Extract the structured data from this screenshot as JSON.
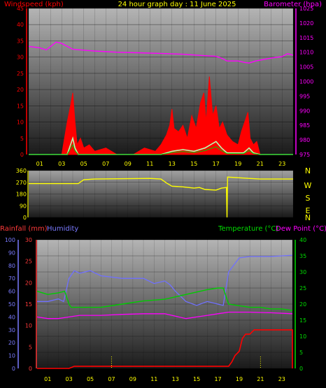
{
  "header": {
    "left": "Windspeed (kph)",
    "center": "24 hour graph day : 11 June 2025",
    "right": "Barometer (hpa)"
  },
  "colors": {
    "red": "#ff0000",
    "magenta": "#ff00ff",
    "yellow": "#ffff00",
    "green": "#00cc00",
    "blue": "#7070ff",
    "lightgreen": "#b8ffb0",
    "rain_axis": "#ff3a3a",
    "hum_axis": "#7a7aff",
    "temp_axis": "#00dd00"
  },
  "chart_data": [
    {
      "type": "line",
      "name": "wind-barometer",
      "x_ticks": [
        "01",
        "03",
        "05",
        "07",
        "09",
        "11",
        "13",
        "15",
        "17",
        "19",
        "21",
        "23"
      ],
      "y_left": {
        "label": "Windspeed (kph)",
        "ticks": [
          "0",
          "5",
          "10",
          "15",
          "20",
          "25",
          "30",
          "35",
          "40",
          "45"
        ],
        "range": [
          0,
          45
        ]
      },
      "y_right": {
        "label": "Barometer (hpa)",
        "ticks": [
          "975",
          "980",
          "985",
          "990",
          "995",
          "1000",
          "1005",
          "1010",
          "1015",
          "1020",
          "1025"
        ],
        "range": [
          975,
          1025
        ]
      },
      "barometer": [
        [
          0,
          1012
        ],
        [
          1,
          1011.5
        ],
        [
          1.6,
          1010.8
        ],
        [
          2,
          1012
        ],
        [
          2.5,
          1013.5
        ],
        [
          3,
          1013
        ],
        [
          3.5,
          1012
        ],
        [
          4,
          1011
        ],
        [
          6,
          1010.4
        ],
        [
          8,
          1010
        ],
        [
          10,
          1009.8
        ],
        [
          12,
          1009.6
        ],
        [
          14,
          1009.3
        ],
        [
          16,
          1008.8
        ],
        [
          17,
          1008.6
        ],
        [
          17.5,
          1008
        ],
        [
          18,
          1007
        ],
        [
          19,
          1007
        ],
        [
          19.6,
          1006.5
        ],
        [
          20,
          1006.3
        ],
        [
          20.6,
          1007
        ],
        [
          22,
          1008
        ],
        [
          23,
          1008.5
        ],
        [
          23.5,
          1009.5
        ],
        [
          24,
          1009
        ]
      ],
      "wind_gust": [
        [
          0,
          0
        ],
        [
          3,
          0
        ],
        [
          3.3,
          6
        ],
        [
          3.5,
          10
        ],
        [
          3.8,
          15
        ],
        [
          4.0,
          19
        ],
        [
          4.2,
          10
        ],
        [
          4.4,
          3
        ],
        [
          4.7,
          5
        ],
        [
          5,
          2
        ],
        [
          5.5,
          3
        ],
        [
          6,
          1
        ],
        [
          7,
          2
        ],
        [
          8,
          0
        ],
        [
          9.5,
          0
        ],
        [
          10.5,
          2
        ],
        [
          11.5,
          1
        ],
        [
          12,
          3
        ],
        [
          12.5,
          6
        ],
        [
          12.8,
          9
        ],
        [
          13,
          14
        ],
        [
          13.2,
          8
        ],
        [
          13.6,
          7
        ],
        [
          14,
          9
        ],
        [
          14.4,
          5
        ],
        [
          14.8,
          12
        ],
        [
          15.2,
          8
        ],
        [
          15.6,
          16
        ],
        [
          15.9,
          19
        ],
        [
          16.1,
          10
        ],
        [
          16.4,
          24
        ],
        [
          16.7,
          12
        ],
        [
          17,
          15
        ],
        [
          17.3,
          8
        ],
        [
          17.6,
          10
        ],
        [
          18,
          6
        ],
        [
          18.5,
          4
        ],
        [
          19,
          3
        ],
        [
          19.3,
          7
        ],
        [
          19.6,
          10
        ],
        [
          19.9,
          13
        ],
        [
          20.1,
          5
        ],
        [
          20.4,
          3
        ],
        [
          20.7,
          4
        ],
        [
          21,
          0
        ],
        [
          24,
          0
        ]
      ],
      "wind_avg": [
        [
          0,
          0
        ],
        [
          3.5,
          0
        ],
        [
          3.8,
          3
        ],
        [
          4,
          5
        ],
        [
          4.2,
          2
        ],
        [
          4.5,
          0
        ],
        [
          12,
          0
        ],
        [
          13,
          1
        ],
        [
          14,
          1.5
        ],
        [
          15,
          1
        ],
        [
          16,
          2
        ],
        [
          16.5,
          3
        ],
        [
          17,
          4
        ],
        [
          17.5,
          2
        ],
        [
          18,
          0.5
        ],
        [
          19.5,
          0.5
        ],
        [
          20,
          2
        ],
        [
          20.4,
          0.5
        ],
        [
          21,
          0
        ],
        [
          24,
          0
        ]
      ]
    },
    {
      "type": "line",
      "name": "wind-direction",
      "y_left_ticks": [
        "0",
        "90",
        "180",
        "270",
        "360"
      ],
      "y_range": [
        0,
        360
      ],
      "compass": [
        "N",
        "W",
        "S",
        "E",
        "N"
      ],
      "direction": [
        [
          0,
          260
        ],
        [
          4.5,
          260
        ],
        [
          5,
          290
        ],
        [
          6,
          295
        ],
        [
          11,
          300
        ],
        [
          12,
          295
        ],
        [
          12.5,
          265
        ],
        [
          13,
          240
        ],
        [
          14,
          235
        ],
        [
          15,
          225
        ],
        [
          15.5,
          230
        ],
        [
          16,
          215
        ],
        [
          17,
          210
        ],
        [
          17.5,
          225
        ],
        [
          17.95,
          230
        ],
        [
          18,
          0
        ],
        [
          18.05,
          310
        ],
        [
          19,
          305
        ],
        [
          20,
          300
        ],
        [
          21,
          295
        ],
        [
          24,
          295
        ]
      ]
    },
    {
      "type": "line",
      "name": "rain-humidity-temp",
      "x_ticks": [
        "01",
        "03",
        "05",
        "07",
        "09",
        "11",
        "13",
        "15",
        "17",
        "19",
        "21",
        "23"
      ],
      "labels": {
        "rain": "Rainfall (mm)",
        "humidity": "Humidity",
        "temp": "Temperature (°C)",
        "dew": "Dew Point (°C)"
      },
      "y_humidity": {
        "ticks": [
          "0",
          "10",
          "20",
          "30",
          "40",
          "50",
          "60",
          "70",
          "80",
          "90",
          "100"
        ],
        "range": [
          0,
          100
        ]
      },
      "y_rain": {
        "ticks": [
          "0",
          "5",
          "10",
          "15",
          "20",
          "25",
          "30"
        ],
        "range": [
          0,
          30
        ]
      },
      "y_temp": {
        "ticks": [
          "0",
          "5",
          "10",
          "15",
          "20",
          "25",
          "30",
          "35",
          "40"
        ],
        "range": [
          0,
          40
        ]
      },
      "temperature": [
        [
          0,
          24
        ],
        [
          1,
          23
        ],
        [
          2,
          23.5
        ],
        [
          2.6,
          24
        ],
        [
          3,
          20
        ],
        [
          3.2,
          19
        ],
        [
          4,
          19
        ],
        [
          6,
          19
        ],
        [
          8,
          20
        ],
        [
          10,
          21
        ],
        [
          12,
          21.5
        ],
        [
          14,
          23
        ],
        [
          16,
          24.5
        ],
        [
          17,
          25
        ],
        [
          17.5,
          25
        ],
        [
          18,
          20
        ],
        [
          19,
          19.5
        ],
        [
          20,
          19
        ],
        [
          21,
          19
        ],
        [
          22,
          18.5
        ],
        [
          23,
          18.5
        ],
        [
          24,
          18
        ]
      ],
      "dew_point": [
        [
          0,
          16
        ],
        [
          1,
          15.5
        ],
        [
          2,
          15.5
        ],
        [
          3,
          16
        ],
        [
          4,
          16.5
        ],
        [
          6,
          16.5
        ],
        [
          8,
          16.8
        ],
        [
          10,
          17
        ],
        [
          12,
          17
        ],
        [
          14,
          15.5
        ],
        [
          15,
          16
        ],
        [
          16,
          16.5
        ],
        [
          17,
          17
        ],
        [
          18,
          17.5
        ],
        [
          20,
          17.5
        ],
        [
          22,
          17.3
        ],
        [
          24,
          17
        ]
      ],
      "humidity": [
        [
          0,
          52
        ],
        [
          1,
          52
        ],
        [
          2,
          54
        ],
        [
          2.5,
          52
        ],
        [
          3,
          70
        ],
        [
          3.5,
          76
        ],
        [
          4,
          74
        ],
        [
          5,
          76
        ],
        [
          6,
          72
        ],
        [
          8,
          70
        ],
        [
          10,
          70
        ],
        [
          11,
          66
        ],
        [
          12,
          68
        ],
        [
          12.5,
          65
        ],
        [
          13,
          60
        ],
        [
          14,
          52
        ],
        [
          15,
          49
        ],
        [
          16,
          52
        ],
        [
          17,
          50
        ],
        [
          17.5,
          49
        ],
        [
          18,
          75
        ],
        [
          19,
          86
        ],
        [
          20,
          87
        ],
        [
          22,
          87
        ],
        [
          24,
          88
        ]
      ],
      "rainfall": [
        [
          0,
          0
        ],
        [
          3,
          0
        ],
        [
          3.5,
          0.5
        ],
        [
          18,
          0.5
        ],
        [
          18.3,
          1.5
        ],
        [
          18.6,
          3
        ],
        [
          19,
          4
        ],
        [
          19.3,
          7
        ],
        [
          19.6,
          8
        ],
        [
          20,
          8
        ],
        [
          20.4,
          9
        ],
        [
          20.8,
          9
        ],
        [
          21.2,
          9
        ],
        [
          24,
          9
        ],
        [
          24,
          0
        ]
      ]
    }
  ]
}
